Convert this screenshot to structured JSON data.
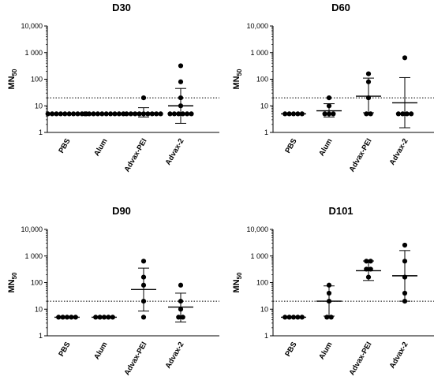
{
  "chart_data": [
    {
      "type": "scatter",
      "title": "D30",
      "ylabel": "MN",
      "ylabel_subscript": "50",
      "y_scale": "log",
      "ylim": [
        1,
        10000
      ],
      "y_tick_labels": [
        "1",
        "10",
        "100",
        "1 000",
        "10,000"
      ],
      "categories": [
        "PBS",
        "Alum",
        "Advax-PEI",
        "Advax-2"
      ],
      "reference_line": 20,
      "groups": [
        {
          "name": "PBS",
          "points": [
            5,
            5,
            5,
            5,
            5,
            5,
            5,
            5,
            5,
            5
          ],
          "mean": 5,
          "sd_low": 5,
          "sd_high": 5
        },
        {
          "name": "Alum",
          "points": [
            5,
            5,
            5,
            5,
            5,
            5,
            5,
            5,
            5,
            5
          ],
          "mean": 5,
          "sd_low": 5,
          "sd_high": 5
        },
        {
          "name": "Advax-PEI",
          "points": [
            5,
            5,
            5,
            5,
            5,
            5,
            5,
            5,
            5,
            20
          ],
          "mean": 5.5,
          "sd_low": 3.8,
          "sd_high": 8.5
        },
        {
          "name": "Advax-2",
          "points": [
            5,
            5,
            5,
            5,
            5,
            5,
            10,
            20,
            80,
            320
          ],
          "mean": 10,
          "sd_low": 2.2,
          "sd_high": 45
        }
      ]
    },
    {
      "type": "scatter",
      "title": "D60",
      "ylabel": "MN",
      "ylabel_subscript": "50",
      "y_scale": "log",
      "ylim": [
        1,
        10000
      ],
      "y_tick_labels": [
        "1",
        "10",
        "100",
        "1 000",
        "10,000"
      ],
      "categories": [
        "PBS",
        "Alum",
        "Advax-PEI",
        "Advax-2"
      ],
      "reference_line": 20,
      "groups": [
        {
          "name": "PBS",
          "points": [
            5,
            5,
            5,
            5,
            5
          ],
          "mean": 5,
          "sd_low": 5,
          "sd_high": 5
        },
        {
          "name": "Alum",
          "points": [
            5,
            5,
            5,
            10,
            20
          ],
          "mean": 6.5,
          "sd_low": 3.8,
          "sd_high": 12
        },
        {
          "name": "Advax-PEI",
          "points": [
            5,
            5,
            20,
            80,
            160
          ],
          "mean": 23,
          "sd_low": 5.5,
          "sd_high": 110
        },
        {
          "name": "Advax-2",
          "points": [
            5,
            5,
            5,
            5,
            640
          ],
          "mean": 13,
          "sd_low": 1.5,
          "sd_high": 115
        }
      ]
    },
    {
      "type": "scatter",
      "title": "D90",
      "ylabel": "MN",
      "ylabel_subscript": "50",
      "y_scale": "log",
      "ylim": [
        1,
        10000
      ],
      "y_tick_labels": [
        "1",
        "10",
        "100",
        "1 000",
        "10,000"
      ],
      "categories": [
        "PBS",
        "Alum",
        "Advax-PEI",
        "Advax-2"
      ],
      "reference_line": 20,
      "groups": [
        {
          "name": "PBS",
          "points": [
            5,
            5,
            5,
            5,
            5
          ],
          "mean": 5,
          "sd_low": 5,
          "sd_high": 5
        },
        {
          "name": "Alum",
          "points": [
            5,
            5,
            5,
            5,
            5
          ],
          "mean": 5,
          "sd_low": 5,
          "sd_high": 5
        },
        {
          "name": "Advax-PEI",
          "points": [
            5,
            20,
            80,
            160,
            640
          ],
          "mean": 55,
          "sd_low": 8.5,
          "sd_high": 350
        },
        {
          "name": "Advax-2",
          "points": [
            5,
            5,
            10,
            20,
            80
          ],
          "mean": 12,
          "sd_low": 3.3,
          "sd_high": 40
        }
      ]
    },
    {
      "type": "scatter",
      "title": "D101",
      "ylabel": "MN",
      "ylabel_subscript": "50",
      "y_scale": "log",
      "ylim": [
        1,
        10000
      ],
      "y_tick_labels": [
        "1",
        "10",
        "100",
        "1 000",
        "10,000"
      ],
      "categories": [
        "PBS",
        "Alum",
        "Advax-PEI",
        "Advax-2"
      ],
      "reference_line": 20,
      "groups": [
        {
          "name": "PBS",
          "points": [
            5,
            5,
            5,
            5,
            5
          ],
          "mean": 5,
          "sd_low": 5,
          "sd_high": 5
        },
        {
          "name": "Alum",
          "points": [
            5,
            5,
            20,
            40,
            80
          ],
          "mean": 20,
          "sd_low": 5.5,
          "sd_high": 75
        },
        {
          "name": "Advax-PEI",
          "points": [
            160,
            320,
            320,
            640,
            640
          ],
          "mean": 280,
          "sd_low": 120,
          "sd_high": 650
        },
        {
          "name": "Advax-2",
          "points": [
            20,
            40,
            160,
            640,
            2560
          ],
          "mean": 180,
          "sd_low": 20,
          "sd_high": 1600
        }
      ]
    }
  ]
}
